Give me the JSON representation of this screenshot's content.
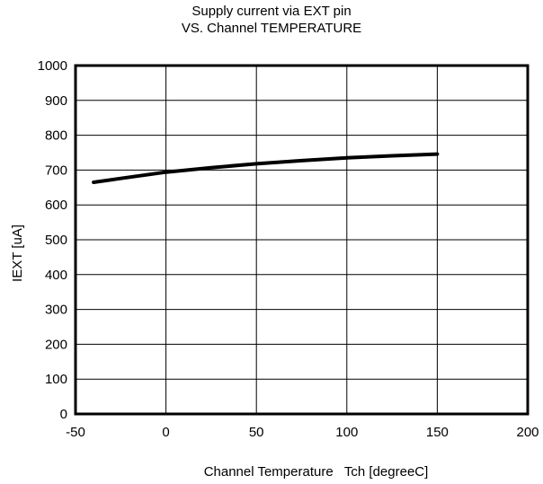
{
  "chart_data": {
    "type": "line",
    "title_line1": "Supply current via EXT pin",
    "title_line2": "VS. Channel TEMPERATURE",
    "xlabel": "Channel Temperature   Tch [degreeC]",
    "ylabel": "IEXT [uA]",
    "xlim": [
      -50,
      200
    ],
    "ylim": [
      0,
      1000
    ],
    "xticks": [
      -50,
      0,
      50,
      100,
      150,
      200
    ],
    "yticks": [
      0,
      100,
      200,
      300,
      400,
      500,
      600,
      700,
      800,
      900,
      1000
    ],
    "grid": true,
    "series": [
      {
        "color": "#000000",
        "x": [
          -40,
          -25,
          0,
          25,
          50,
          75,
          100,
          125,
          150
        ],
        "y": [
          665,
          676,
          694,
          707,
          718,
          727,
          735,
          741,
          746
        ]
      }
    ]
  }
}
